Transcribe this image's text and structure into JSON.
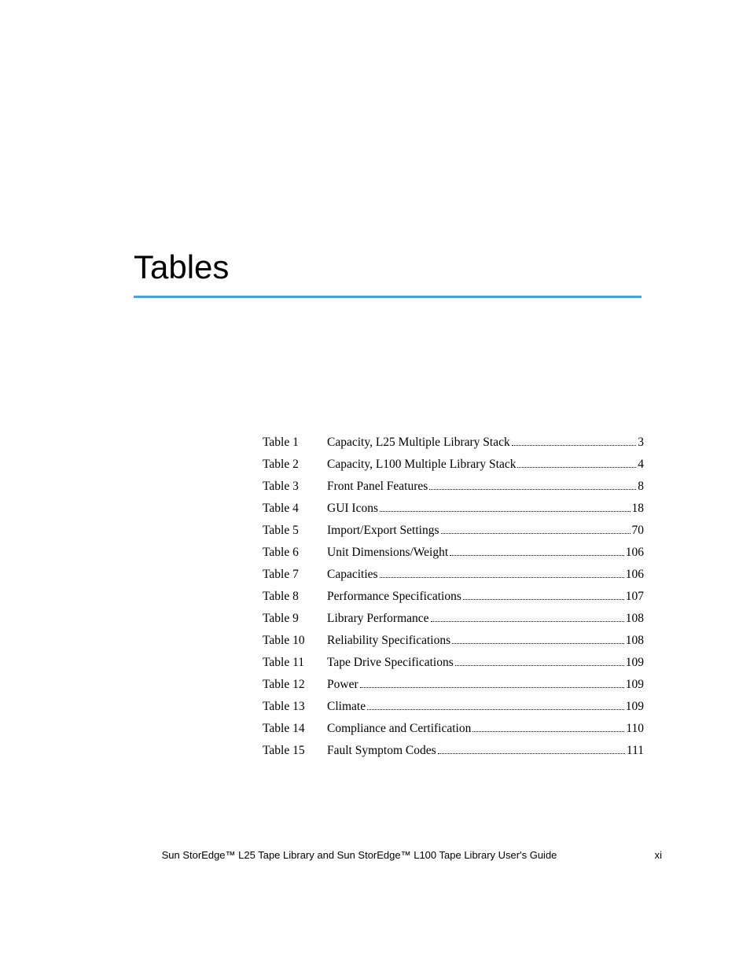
{
  "heading": "Tables",
  "colors": {
    "rule": "#4aa3df",
    "text": "#000000",
    "background": "#ffffff"
  },
  "typography": {
    "title_font": "Arial",
    "title_size_pt": 32,
    "body_font": "Georgia",
    "body_size_pt": 12,
    "footer_font": "Arial",
    "footer_size_pt": 10
  },
  "entries": [
    {
      "label": "Table 1",
      "title": "Capacity, L25 Multiple Library Stack",
      "page": "3"
    },
    {
      "label": "Table 2",
      "title": "Capacity, L100 Multiple Library Stack",
      "page": "4"
    },
    {
      "label": "Table 3",
      "title": "Front Panel Features",
      "page": "8"
    },
    {
      "label": "Table 4",
      "title": "GUI Icons",
      "page": "18"
    },
    {
      "label": "Table 5",
      "title": "Import/Export Settings",
      "page": "70"
    },
    {
      "label": "Table 6",
      "title": "Unit Dimensions/Weight",
      "page": "106"
    },
    {
      "label": "Table 7",
      "title": "Capacities",
      "page": "106"
    },
    {
      "label": "Table 8",
      "title": "Performance Specifications",
      "page": "107"
    },
    {
      "label": "Table 9",
      "title": "Library Performance",
      "page": "108"
    },
    {
      "label": "Table 10",
      "title": "Reliability Specifications",
      "page": "108"
    },
    {
      "label": "Table 11",
      "title": "Tape Drive Specifications",
      "page": "109"
    },
    {
      "label": "Table 12",
      "title": "Power",
      "page": "109"
    },
    {
      "label": "Table 13",
      "title": "Climate",
      "page": "109"
    },
    {
      "label": "Table 14",
      "title": "Compliance and Certification",
      "page": "110"
    },
    {
      "label": "Table 15",
      "title": "Fault Symptom Codes",
      "page": "111"
    }
  ],
  "footer": {
    "text": "Sun StorEdge™ L25 Tape Library and Sun StorEdge™ L100 Tape Library User's Guide",
    "pagenum": "xi"
  }
}
